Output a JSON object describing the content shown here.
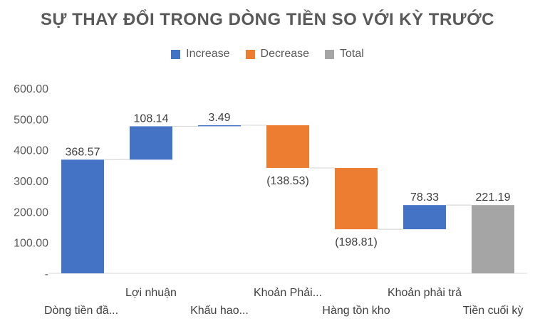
{
  "chart_data": {
    "type": "waterfall",
    "title": "SỰ THAY ĐỔI TRONG DÒNG TIỀN SO VỚI KỲ TRƯỚC",
    "legend": [
      {
        "name": "Increase",
        "color": "#4472C4"
      },
      {
        "name": "Decrease",
        "color": "#ED7D31"
      },
      {
        "name": "Total",
        "color": "#A5A5A5"
      }
    ],
    "legend_position": "top",
    "grid": false,
    "ylim": [
      0,
      600
    ],
    "ytick_values": [
      0,
      100,
      200,
      300,
      400,
      500,
      600
    ],
    "ytick_labels": [
      "-",
      "100.00",
      "200.00",
      "300.00",
      "400.00",
      "500.00",
      "600.00"
    ],
    "categories": [
      "Dòng tiền đầ...",
      "Lợi nhuận",
      "Khấu hao...",
      "Khoản Phải...",
      "Hàng tồn kho",
      "Khoản phải trả",
      "Tiền cuối kỳ"
    ],
    "values": [
      368.57,
      108.14,
      3.49,
      -138.53,
      -198.81,
      78.33,
      221.19
    ],
    "kinds": [
      "increase",
      "increase",
      "increase",
      "decrease",
      "decrease",
      "increase",
      "total"
    ],
    "data_labels": [
      "368.57",
      "108.14",
      "3.49",
      "(138.53)",
      "(198.81)",
      "78.33",
      "221.19"
    ]
  }
}
